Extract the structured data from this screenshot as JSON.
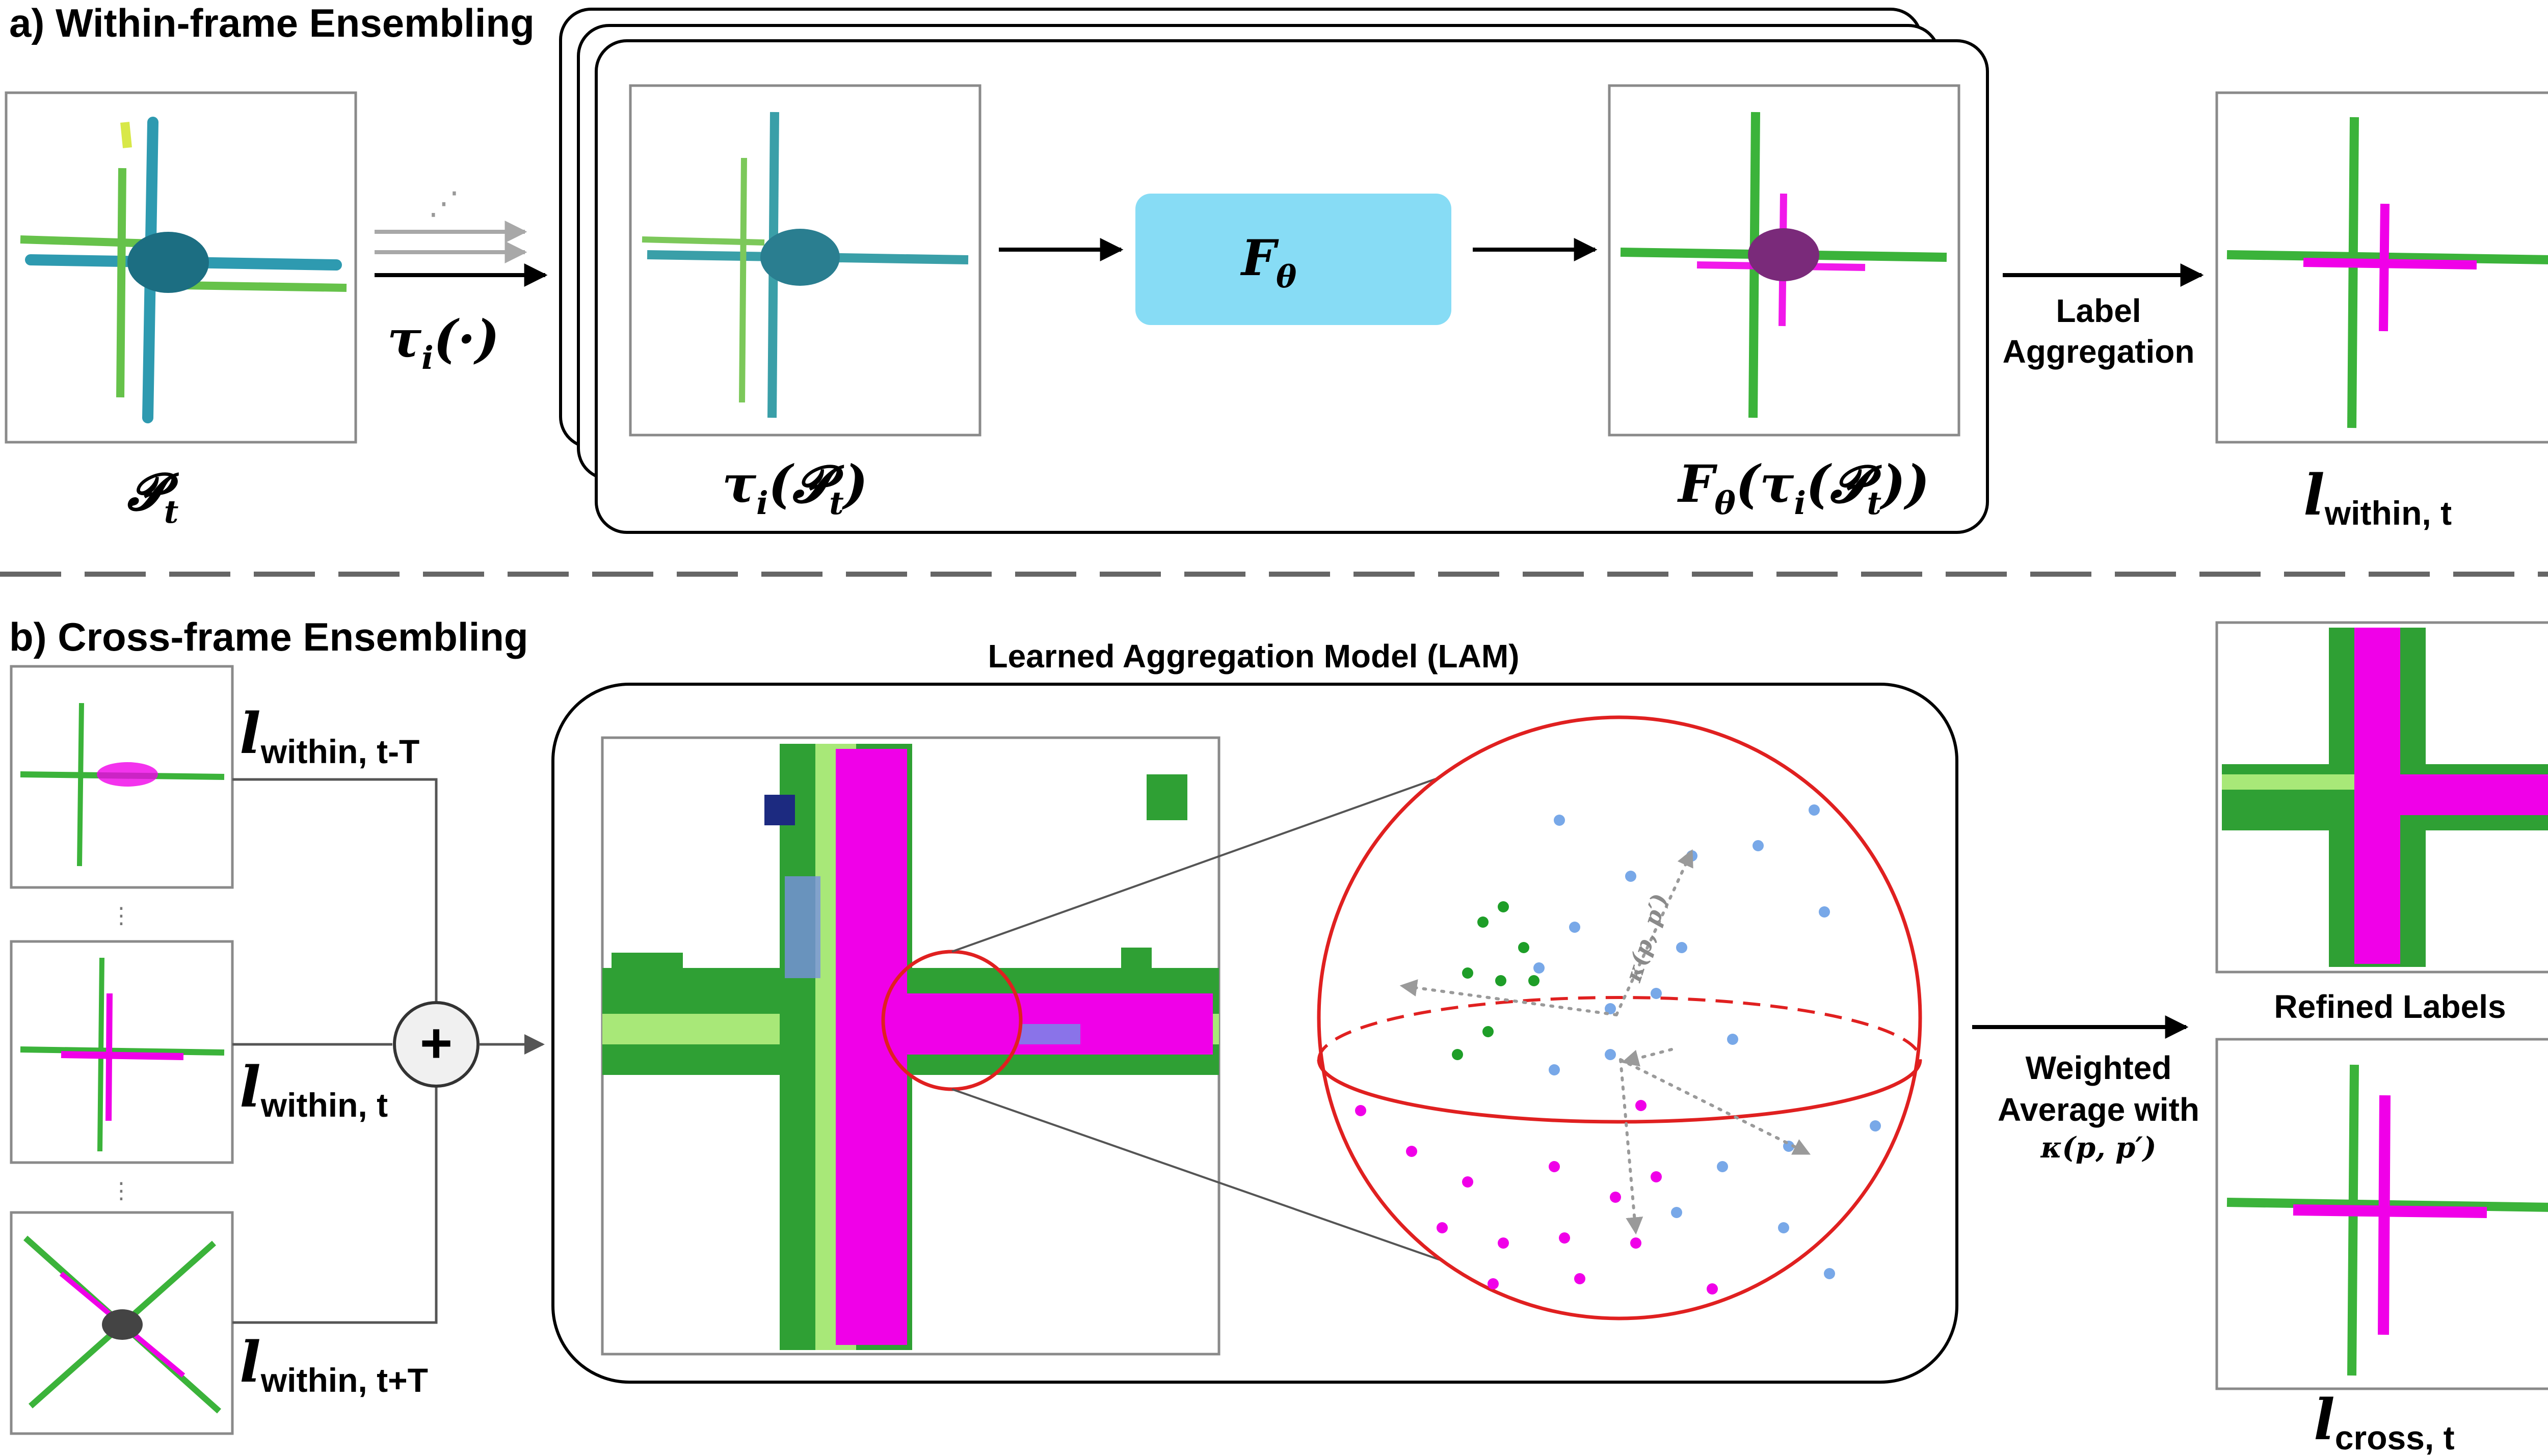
{
  "section_a": {
    "title": "a) Within-frame Ensembling",
    "input_label": "𝓟",
    "input_label_sub": "t",
    "transform_label": "τ",
    "transform_label_sub": "i",
    "transform_label_rest": "(·)",
    "ellipsis": "⋰",
    "augmented_label": "τ",
    "augmented_label_sub": "i",
    "augmented_label_rest": "(𝓟",
    "augmented_label_rest_sub": "t",
    "augmented_label_close": ")",
    "model_label": "F",
    "model_label_sub": "θ",
    "prediction_label": "F",
    "prediction_label_sub1": "θ",
    "prediction_label_mid": "(τ",
    "prediction_label_sub2": "i",
    "prediction_label_mid2": "(𝓟",
    "prediction_label_sub3": "t",
    "prediction_label_close": "))",
    "aggregation_label_line1": "Label",
    "aggregation_label_line2": "Aggregation",
    "output_label": "l",
    "output_label_sub": "within, t"
  },
  "section_b": {
    "title": "b) Cross-frame Ensembling",
    "frame_labels": [
      {
        "main": "l",
        "sub": "within, t-T"
      },
      {
        "main": "l",
        "sub": "within, t"
      },
      {
        "main": "l",
        "sub": "within, t+T"
      }
    ],
    "vdots": "⋮",
    "plus_symbol": "+",
    "lam_title": "Learned Aggregation Model (LAM)",
    "kernel_label": "κ(p, p′)",
    "weighted_label_line1": "Weighted",
    "weighted_label_line2": "Average with",
    "weighted_label_line3": "κ(p, p′)",
    "refined_title": "Refined Labels",
    "output_label": "l",
    "output_label_sub": "cross, t"
  },
  "colors": {
    "model_box": "#87DCF5",
    "sphere": "#E02020",
    "green_points": "#1E9E28",
    "blue_points": "#78A8E8",
    "magenta_points": "#F000E8",
    "arrow_gray": "#A8A8A8",
    "divider": "#666666"
  }
}
